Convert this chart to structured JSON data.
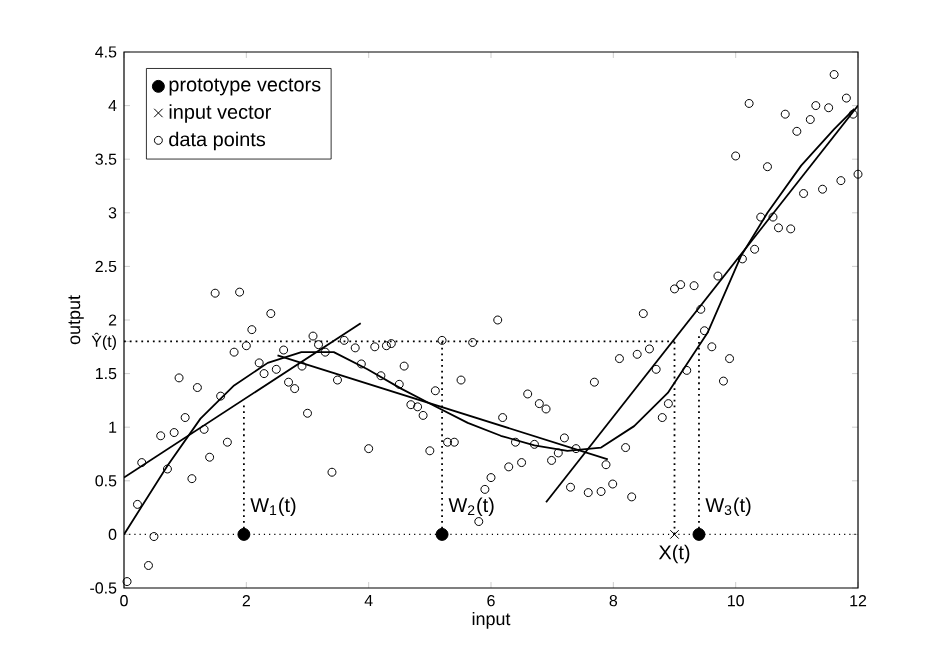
{
  "chart_data": {
    "type": "scatter",
    "xlabel": "input",
    "ylabel": "output",
    "xlim": [
      0,
      12
    ],
    "ylim": [
      -0.5,
      4.5
    ],
    "xticks": [
      0,
      2,
      4,
      6,
      8,
      10,
      12
    ],
    "yticks": [
      -0.5,
      0,
      0.5,
      1,
      1.5,
      {
        "value": 1.8,
        "label": "Ŷ(t)"
      },
      2,
      2.5,
      3,
      3.5,
      4,
      4.5
    ],
    "grid": false,
    "legend": "top left",
    "marker": "circle",
    "ref_lines": [
      {
        "axis": "y",
        "value": 0,
        "line_style": "dotted",
        "color": "#000000"
      }
    ],
    "annotations": [
      {
        "text": "W$_{1}$(t)",
        "x": 1.96,
        "y": 0
      },
      {
        "text": "W$_{2}$(t)",
        "x": 5.2,
        "y": 0
      },
      {
        "text": "W$_{3}$(t)",
        "x": 9.4,
        "y": 0
      },
      {
        "text": "X(t)",
        "x": 9.0,
        "y": 0
      }
    ],
    "series": [
      {
        "name": "prototype vectors",
        "marker": "circle",
        "color": "#000000",
        "x": [
          1.96,
          5.2,
          9.4
        ],
        "values": [
          0,
          0,
          0
        ]
      },
      {
        "name": "input vector",
        "marker": "cross",
        "color": "#000000",
        "x": [
          9.0
        ],
        "values": [
          0
        ]
      },
      {
        "name": "data points",
        "color": "#000000",
        "x": [
          0.05,
          0.22,
          0.29,
          0.4,
          0.49,
          0.6,
          0.71,
          0.82,
          0.9,
          1.0,
          1.11,
          1.2,
          1.31,
          1.4,
          1.49,
          1.58,
          1.69,
          1.8,
          1.89,
          2.0,
          2.09,
          2.21,
          2.29,
          2.4,
          2.49,
          2.61,
          2.69,
          2.79,
          2.91,
          3.0,
          3.09,
          3.18,
          3.29,
          3.4,
          3.49,
          3.6,
          3.78,
          3.88,
          4.0,
          4.1,
          4.2,
          4.29,
          4.37,
          4.5,
          4.58,
          4.69,
          4.8,
          4.89,
          5.0,
          5.09,
          5.2,
          5.29,
          5.4,
          5.51,
          5.7,
          5.8,
          5.9,
          6.0,
          6.11,
          6.19,
          6.29,
          6.4,
          6.5,
          6.6,
          6.71,
          6.79,
          6.9,
          6.99,
          7.1,
          7.2,
          7.3,
          7.39,
          7.59,
          7.69,
          7.8,
          7.88,
          7.99,
          8.1,
          8.2,
          8.3,
          8.39,
          8.49,
          8.59,
          8.7,
          8.8,
          8.9,
          9.0,
          9.1,
          9.2,
          9.32,
          9.43,
          9.49,
          9.61,
          9.71,
          9.8,
          9.9,
          10.0,
          10.11,
          10.22,
          10.31,
          10.41,
          10.52,
          10.61,
          10.7,
          10.81,
          10.9,
          11.0,
          11.11,
          11.22,
          11.31,
          11.42,
          11.52,
          11.61,
          11.72,
          11.81,
          11.92,
          12.0
        ],
        "values": [
          -0.44,
          0.28,
          0.67,
          -0.29,
          -0.02,
          0.92,
          0.61,
          0.95,
          1.46,
          1.09,
          0.52,
          1.37,
          0.98,
          0.72,
          2.25,
          1.29,
          0.86,
          1.7,
          2.26,
          1.76,
          1.91,
          1.6,
          1.5,
          2.06,
          1.54,
          1.72,
          1.42,
          1.36,
          1.57,
          1.13,
          1.85,
          1.77,
          1.7,
          0.58,
          1.44,
          1.81,
          1.74,
          1.59,
          0.8,
          1.75,
          1.48,
          1.76,
          1.78,
          1.4,
          1.57,
          1.21,
          1.19,
          1.11,
          0.78,
          1.34,
          1.81,
          0.86,
          0.86,
          1.44,
          1.79,
          0.12,
          0.42,
          0.53,
          2.0,
          1.09,
          0.63,
          0.86,
          0.67,
          1.31,
          0.84,
          1.22,
          1.17,
          0.69,
          0.76,
          0.9,
          0.44,
          0.8,
          0.39,
          1.42,
          0.4,
          0.65,
          0.47,
          1.64,
          0.81,
          0.35,
          1.68,
          2.06,
          1.73,
          1.54,
          1.09,
          1.22,
          2.29,
          2.33,
          1.53,
          2.32,
          2.1,
          1.9,
          1.75,
          2.41,
          1.43,
          1.64,
          3.53,
          2.57,
          4.02,
          2.66,
          2.96,
          3.43,
          2.96,
          2.86,
          3.92,
          2.85,
          3.76,
          3.18,
          3.87,
          4.0,
          3.22,
          3.98,
          4.29,
          3.3,
          4.07,
          3.92,
          3.36
        ]
      },
      {
        "type": "line",
        "marker": "none",
        "line_style": "solid",
        "color": "#000000",
        "x": [
          0,
          0.71,
          1.25,
          1.8,
          2.35,
          2.9,
          3.43,
          3.98,
          4.53,
          5.07,
          5.62,
          6.16,
          6.71,
          7.25,
          7.8,
          8.34,
          8.89,
          9.54,
          10.09,
          10.52,
          11.07,
          11.61,
          11.94
        ],
        "values": [
          0,
          0.64,
          1.08,
          1.39,
          1.6,
          1.7,
          1.7,
          1.54,
          1.36,
          1.2,
          1.04,
          0.92,
          0.83,
          0.78,
          0.81,
          1.01,
          1.32,
          1.88,
          2.6,
          3.0,
          3.44,
          3.78,
          3.97
        ]
      },
      {
        "type": "line",
        "marker": "none",
        "line_style": "solid",
        "color": "#000000",
        "x": [
          0,
          3.87
        ],
        "values": [
          0.53,
          1.97
        ]
      },
      {
        "type": "line",
        "marker": "none",
        "line_style": "solid",
        "color": "#000000",
        "x": [
          2.51,
          7.91
        ],
        "values": [
          1.67,
          0.7
        ]
      },
      {
        "type": "line",
        "marker": "none",
        "line_style": "solid",
        "color": "#000000",
        "x": [
          6.9,
          12.0
        ],
        "values": [
          0.3,
          4.0
        ]
      },
      {
        "type": "line",
        "marker": "none",
        "line_style": "dotted",
        "color": "#000000",
        "x": [
          0,
          9.0
        ],
        "values": [
          1.8,
          1.8
        ]
      },
      {
        "type": "line",
        "marker": "none",
        "line_style": "dotted",
        "color": "#000000",
        "x": [
          1.96,
          1.96
        ],
        "values": [
          0,
          1.23
        ]
      },
      {
        "type": "line",
        "marker": "none",
        "line_style": "dotted",
        "color": "#000000",
        "x": [
          5.2,
          5.2
        ],
        "values": [
          0,
          1.8
        ]
      },
      {
        "type": "line",
        "marker": "none",
        "line_style": "dotted",
        "color": "#000000",
        "x": [
          9.0,
          9.0
        ],
        "values": [
          0,
          1.8
        ]
      },
      {
        "type": "line",
        "marker": "none",
        "line_style": "dotted",
        "color": "#000000",
        "x": [
          9.4,
          9.4
        ],
        "values": [
          0,
          1.87
        ]
      }
    ]
  }
}
